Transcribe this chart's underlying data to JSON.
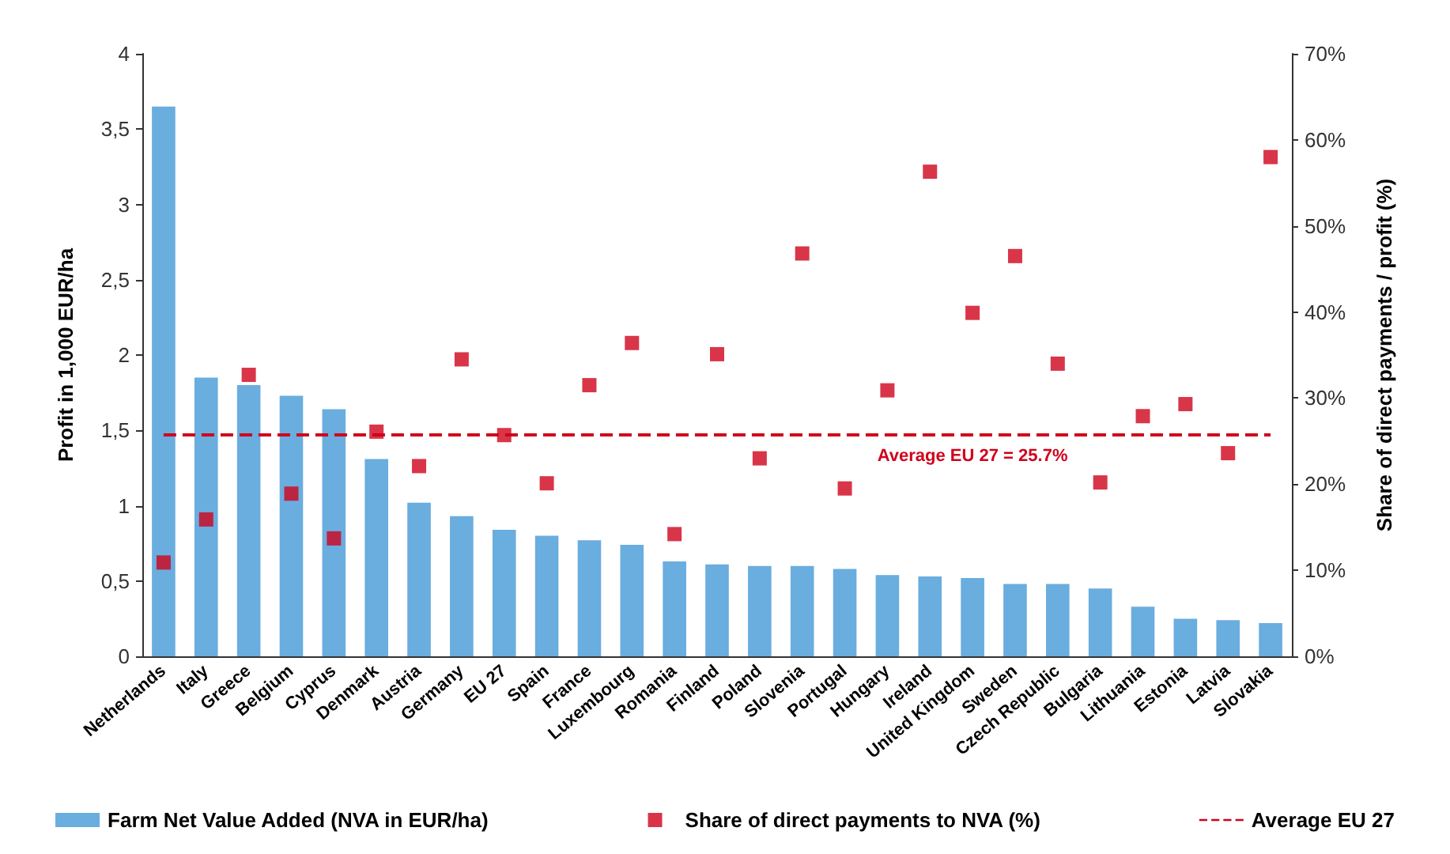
{
  "chart_data": {
    "type": "bar",
    "ylabel": "Profit in 1,000 EUR/ha",
    "y2label": "Share of direct payments / profit (%)",
    "categories": [
      "Netherlands",
      "Italy",
      "Greece",
      "Belgium",
      "Cyprus",
      "Denmark",
      "Austria",
      "Germany",
      "EU 27",
      "Spain",
      "France",
      "Luxembourg",
      "Romania",
      "Finland",
      "Poland",
      "Slovenia",
      "Portugal",
      "Hungary",
      "Ireland",
      "United Kingdom",
      "Sweden",
      "Czech Republic",
      "Bulgaria",
      "Lithuania",
      "Estonia",
      "Latvia",
      "Slovakia"
    ],
    "series": [
      {
        "name": "Farm Net Value Added (NVA in EUR/ha)",
        "color": "#6aaddf",
        "values": [
          3.65,
          1.85,
          1.8,
          1.73,
          1.64,
          1.31,
          1.02,
          0.93,
          0.84,
          0.8,
          0.77,
          0.74,
          0.63,
          0.61,
          0.6,
          0.6,
          0.58,
          0.54,
          0.53,
          0.52,
          0.48,
          0.48,
          0.45,
          0.33,
          0.25,
          0.24,
          0.22
        ]
      },
      {
        "name": "Share of direct payments to NVA (%)",
        "type": "scatter",
        "axis": "y2",
        "marker": "square",
        "color": "#d0021b",
        "values": [
          10.9,
          15.9,
          32.7,
          18.9,
          13.7,
          26.1,
          22.1,
          34.5,
          25.7,
          20.1,
          31.5,
          36.4,
          14.2,
          35.1,
          23.0,
          46.8,
          19.5,
          30.9,
          56.3,
          39.9,
          46.5,
          34.0,
          20.2,
          27.9,
          29.3,
          23.6,
          58.0
        ]
      }
    ],
    "ylim": [
      0,
      4
    ],
    "yticks": [
      0,
      {
        "value": 0.5,
        "label": "0,5"
      },
      1,
      {
        "value": 1.5,
        "label": "1,5"
      },
      2,
      {
        "value": 2.5,
        "label": "2,5"
      },
      3,
      {
        "value": 3.5,
        "label": "3,5"
      },
      4
    ],
    "y2lim": [
      0,
      70
    ],
    "y2ticks": [
      {
        "value": 0,
        "label": "0%"
      },
      {
        "value": 10,
        "label": "10%"
      },
      {
        "value": 20,
        "label": "20%"
      },
      {
        "value": 30,
        "label": "30%"
      },
      {
        "value": 40,
        "label": "40%"
      },
      {
        "value": 50,
        "label": "50%"
      },
      {
        "value": 60,
        "label": "60%"
      },
      {
        "value": 70,
        "label": "70%"
      }
    ],
    "ref_lines": [
      {
        "axis": "y2",
        "value": 25.7,
        "label": "Average EU 27",
        "color": "#d0021b",
        "line_style": "dashed"
      }
    ],
    "annotations": [
      "Average EU 27 = 25.7%"
    ],
    "grid": false,
    "legend": "bottom"
  }
}
